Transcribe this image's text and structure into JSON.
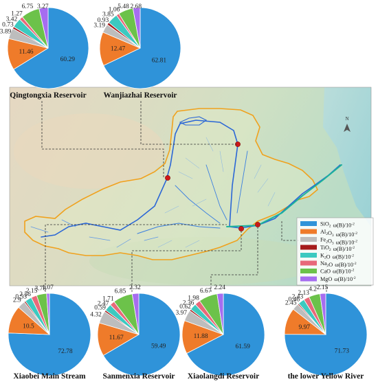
{
  "colors": {
    "SiO2": "#2f93d9",
    "Al2O3": "#ef7b2a",
    "Fe2O3": "#bdbdbd",
    "TiO2": "#a51c1c",
    "K2O": "#3cc9c0",
    "Na2O": "#e8697a",
    "CaO": "#6cc24a",
    "MgO": "#a66df0",
    "basin_boundary": "#f0a11c",
    "river": "#2a66d6",
    "reservoir_marker": "#d01818"
  },
  "legend": [
    {
      "key": "SiO2",
      "oxide": "SiO",
      "sub": "2",
      "unit": "ω(B)/10",
      "sup": "-2"
    },
    {
      "key": "Al2O3",
      "oxide": "Al",
      "sub": "2",
      "oxide2": "O",
      "sub2": "3",
      "unit": "ω(B)/10",
      "sup": "-2"
    },
    {
      "key": "Fe2O3",
      "oxide": "Fe",
      "sub": "2",
      "oxide2": "O",
      "sub2": "3",
      "unit": "ω(B)/10",
      "sup": "-2"
    },
    {
      "key": "TiO2",
      "oxide": "TiO",
      "sub": "2",
      "unit": "ω(B)/10",
      "sup": "-2"
    },
    {
      "key": "K2O",
      "oxide": "K",
      "sub": "2",
      "oxide2": "O",
      "unit": "ω(B)/10",
      "sup": "-2"
    },
    {
      "key": "Na2O",
      "oxide": "Na",
      "sub": "2",
      "oxide2": "O",
      "unit": "ω(B)/10",
      "sup": "-2"
    },
    {
      "key": "CaO",
      "oxide": "CaO",
      "unit": "ω(B)/10",
      "sup": "-2"
    },
    {
      "key": "MgO",
      "oxide": "MgO",
      "unit": "ω(B)/10",
      "sup": "-2"
    }
  ],
  "north_label": "N",
  "chart_data": [
    {
      "type": "pie",
      "title": "Qingtongxia Reservoir",
      "labels": [
        "SiO2",
        "Al2O3",
        "Fe2O3",
        "TiO2",
        "K2O",
        "Na2O",
        "CaO",
        "MgO"
      ],
      "values": [
        60.29,
        11.46,
        3.89,
        0.73,
        3.42,
        1.27,
        6.75,
        3.27
      ],
      "value_labels": [
        "60.29",
        "11.46",
        "3.89",
        "0.73",
        "3.42",
        "1.27",
        "6.75",
        "3.27"
      ]
    },
    {
      "type": "pie",
      "title": "Wanjiazhai Reservoir",
      "labels": [
        "SiO2",
        "Al2O3",
        "Fe2O3",
        "TiO2",
        "K2O",
        "Na2O",
        "CaO",
        "MgO"
      ],
      "values": [
        62.81,
        12.47,
        3.19,
        0.93,
        3.85,
        1.06,
        5.48,
        2.68
      ],
      "value_labels": [
        "62.81",
        "12.47",
        "3.19",
        "0.93",
        "3.85",
        "1.06",
        "5.48",
        "2.68"
      ]
    },
    {
      "type": "pie",
      "title": "Xiaobei Main Stream",
      "labels": [
        "SiO2",
        "Al2O3",
        "Fe2O3",
        "TiO2",
        "K2O",
        "Na2O",
        "CaO",
        "MgO"
      ],
      "values": [
        72.78,
        10.5,
        2.9,
        0.53,
        2.56,
        2.15,
        3.78,
        1.07
      ],
      "value_labels": [
        "72.78",
        "10.5",
        "2.9",
        "0.53",
        "2.56",
        "2.15",
        "3.78",
        "1.07"
      ]
    },
    {
      "type": "pie",
      "title": "Sanmenxia Reservoir",
      "labels": [
        "SiO2",
        "Al2O3",
        "Fe2O3",
        "TiO2",
        "K2O",
        "Na2O",
        "CaO",
        "MgO"
      ],
      "values": [
        59.49,
        11.67,
        4.32,
        0.59,
        2.47,
        1.71,
        6.85,
        2.32
      ],
      "value_labels": [
        "59.49",
        "11.67",
        "4.32",
        "0.59",
        "2.47",
        "1.71",
        "6.85",
        "2.32"
      ]
    },
    {
      "type": "pie",
      "title": "Xiaolangdi Reservoir",
      "labels": [
        "SiO2",
        "Al2O3",
        "Fe2O3",
        "TiO2",
        "K2O",
        "Na2O",
        "CaO",
        "MgO"
      ],
      "values": [
        61.59,
        11.88,
        3.97,
        0.62,
        2.36,
        1.98,
        6.67,
        2.24
      ],
      "value_labels": [
        "61.59",
        "11.88",
        "3.97",
        "0.62",
        "2.36",
        "1.98",
        "6.67",
        "2.24"
      ]
    },
    {
      "type": "pie",
      "title": "the lower Yellow River",
      "labels": [
        "SiO2",
        "Al2O3",
        "Fe2O3",
        "TiO2",
        "K2O",
        "Na2O",
        "CaO",
        "MgO"
      ],
      "values": [
        71.73,
        9.97,
        2.45,
        0.46,
        2.43,
        2.13,
        4.2,
        2.15
      ],
      "value_labels": [
        "71.73",
        "9.97",
        "2.45",
        "0.46",
        "2.43",
        "2.13",
        "4.2",
        "2.15"
      ]
    }
  ]
}
